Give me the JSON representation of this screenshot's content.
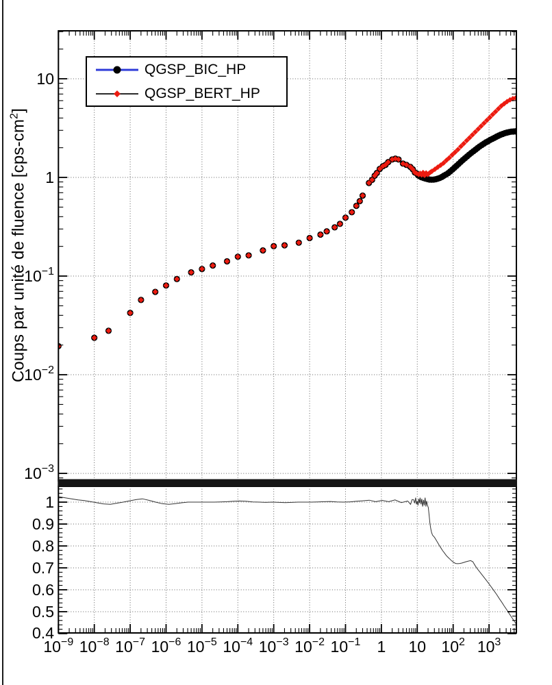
{
  "page": {
    "background": "#ffffff"
  },
  "colors": {
    "frame": "#000000",
    "grid": "#5f5f5f",
    "separator_band": "#161616",
    "bic_marker": "#000000",
    "bert_marker": "#ec1b10",
    "bic_legend_line": "#2e3bd8",
    "bert_legend_line": "#2a2a2a",
    "ratio_line": "#333333",
    "text": "#000000"
  },
  "legend": {
    "entries": [
      {
        "label": "QGSP_BIC_HP",
        "line_color": "#2e3bd8",
        "marker_shape": "circle",
        "marker_color": "#000000"
      },
      {
        "label": "QGSP_BERT_HP",
        "line_color": "#2a2a2a",
        "marker_shape": "diamond",
        "marker_color": "#ec1b10"
      }
    ]
  },
  "axes": {
    "y_title_prefix": "Coups par unité  de fluence [cps-cm",
    "y_title_sup": "2",
    "y_title_suffix": "]"
  },
  "chart_data": {
    "type": "scatter",
    "title": "",
    "xlabel": "",
    "x_scale": "log",
    "x_range": [
      1e-09,
      5780
    ],
    "x_tick_decades": [
      -9,
      -8,
      -7,
      -6,
      -5,
      -4,
      -3,
      -2,
      -1,
      0,
      1,
      2,
      3
    ],
    "grid": "dotted",
    "legend_position": "top-left",
    "main_panel": {
      "ylabel": "Coups par unité de fluence [cps-cm2]",
      "y_scale": "log",
      "y_range": [
        0.00084,
        30.6
      ],
      "y_tick_decades": [
        1,
        0,
        -1,
        -2,
        -3
      ],
      "series_names": [
        "QGSP_BIC_HP",
        "QGSP_BERT_HP"
      ],
      "shared_points": [
        [
          1e-09,
          0.0195
        ],
        [
          1e-08,
          0.0237
        ],
        [
          2.5e-08,
          0.0279
        ],
        [
          1e-07,
          0.0423
        ],
        [
          2e-07,
          0.0573
        ],
        [
          5e-07,
          0.0692
        ],
        [
          1e-06,
          0.0803
        ],
        [
          2e-06,
          0.0932
        ],
        [
          5e-06,
          0.109
        ],
        [
          1e-05,
          0.118
        ],
        [
          2e-05,
          0.128
        ],
        [
          5e-05,
          0.141
        ],
        [
          0.0001,
          0.157
        ],
        [
          0.0002,
          0.162
        ],
        [
          0.0005,
          0.182
        ],
        [
          0.001,
          0.201
        ],
        [
          0.002,
          0.205
        ],
        [
          0.005,
          0.218
        ],
        [
          0.01,
          0.243
        ],
        [
          0.02,
          0.263
        ],
        [
          0.03,
          0.284
        ],
        [
          0.05,
          0.312
        ],
        [
          0.07,
          0.338
        ],
        [
          0.1,
          0.391
        ],
        [
          0.15,
          0.444
        ],
        [
          0.2,
          0.515
        ],
        [
          0.25,
          0.575
        ],
        [
          0.3,
          0.654
        ],
        [
          0.45,
          0.879
        ],
        [
          0.55,
          0.945
        ],
        [
          0.65,
          1.04
        ],
        [
          0.75,
          1.11
        ],
        [
          0.9,
          1.22
        ],
        [
          1.1,
          1.3
        ],
        [
          1.3,
          1.34
        ],
        [
          1.55,
          1.43
        ],
        [
          2.0,
          1.52
        ],
        [
          2.45,
          1.55
        ],
        [
          3.0,
          1.52
        ],
        [
          4.0,
          1.38
        ],
        [
          5.0,
          1.34
        ],
        [
          6.4,
          1.28
        ],
        [
          7.5,
          1.21
        ],
        [
          8.6,
          1.12
        ],
        [
          9.5,
          1.1
        ]
      ],
      "bic_points": [
        [
          10.5,
          1.05
        ],
        [
          11.7,
          1.025
        ],
        [
          13,
          1.005
        ],
        [
          15,
          0.985
        ],
        [
          17,
          0.972
        ],
        [
          19.5,
          0.96
        ],
        [
          22,
          0.952
        ],
        [
          25,
          0.948
        ],
        [
          28.5,
          0.95
        ],
        [
          32.5,
          0.958
        ],
        [
          37,
          0.97
        ],
        [
          42.5,
          0.987
        ],
        [
          48.5,
          1.01
        ],
        [
          55,
          1.04
        ],
        [
          63,
          1.07
        ],
        [
          72.5,
          1.105
        ],
        [
          83,
          1.15
        ],
        [
          95,
          1.2
        ],
        [
          108,
          1.25
        ],
        [
          124,
          1.31
        ],
        [
          142,
          1.37
        ],
        [
          163,
          1.435
        ],
        [
          186,
          1.5
        ],
        [
          213,
          1.565
        ],
        [
          244,
          1.63
        ],
        [
          279,
          1.7
        ],
        [
          320,
          1.77
        ],
        [
          366,
          1.84
        ],
        [
          419,
          1.91
        ],
        [
          479,
          1.985
        ],
        [
          549,
          2.06
        ],
        [
          628,
          2.13
        ],
        [
          719,
          2.2
        ],
        [
          823,
          2.27
        ],
        [
          942,
          2.33
        ],
        [
          1078,
          2.4
        ],
        [
          1234,
          2.46
        ],
        [
          1412,
          2.52
        ],
        [
          1616,
          2.59
        ],
        [
          1850,
          2.65
        ],
        [
          2117,
          2.71
        ],
        [
          2423,
          2.76
        ],
        [
          2773,
          2.81
        ],
        [
          3174,
          2.85
        ],
        [
          3632,
          2.88
        ],
        [
          4157,
          2.91
        ],
        [
          4758,
          2.92
        ],
        [
          5446,
          2.93
        ],
        [
          5780,
          2.92
        ]
      ],
      "bert_points": [
        [
          11,
          1.07
        ],
        [
          12,
          1.1
        ],
        [
          13.2,
          1.06
        ],
        [
          14.5,
          1.12
        ],
        [
          16,
          1.05
        ],
        [
          17.6,
          1.11
        ],
        [
          19.4,
          1.07
        ],
        [
          21.3,
          1.1
        ],
        [
          23.4,
          1.13
        ],
        [
          25.7,
          1.155
        ],
        [
          30.9,
          1.21
        ],
        [
          37.2,
          1.27
        ],
        [
          44.8,
          1.33
        ],
        [
          54,
          1.4
        ],
        [
          65,
          1.49
        ],
        [
          78,
          1.58
        ],
        [
          94,
          1.69
        ],
        [
          113,
          1.8
        ],
        [
          136,
          1.92
        ],
        [
          164,
          2.06
        ],
        [
          197,
          2.2
        ],
        [
          238,
          2.36
        ],
        [
          286,
          2.52
        ],
        [
          344,
          2.7
        ],
        [
          414,
          2.89
        ],
        [
          499,
          3.09
        ],
        [
          600,
          3.31
        ],
        [
          723,
          3.54
        ],
        [
          870,
          3.79
        ],
        [
          1047,
          4.05
        ],
        [
          1260,
          4.34
        ],
        [
          1517,
          4.64
        ],
        [
          1826,
          4.97
        ],
        [
          2198,
          5.3
        ],
        [
          2646,
          5.59
        ],
        [
          3184,
          5.87
        ],
        [
          3833,
          6.11
        ],
        [
          4613,
          6.28
        ],
        [
          5553,
          6.4
        ],
        [
          5780,
          6.43
        ]
      ]
    },
    "ratio_panel": {
      "ylabel": "",
      "y_scale": "linear",
      "y_range": [
        0.403,
        1.072
      ],
      "y_ticks": [
        1.0,
        0.9,
        0.8,
        0.7,
        0.6,
        0.5,
        0.4
      ],
      "y_minor_step": 0.02,
      "ratio_points": [
        [
          1e-09,
          1.025
        ],
        [
          1.5e-09,
          1.02
        ],
        [
          2.3e-09,
          1.015
        ],
        [
          3.5e-09,
          1.01
        ],
        [
          5.3e-09,
          1.007
        ],
        [
          8e-09,
          1.002
        ],
        [
          1.2e-08,
          0.997
        ],
        [
          1.8e-08,
          0.992
        ],
        [
          2.8e-08,
          0.99
        ],
        [
          4.2e-08,
          0.995
        ],
        [
          6.4e-08,
          1.0
        ],
        [
          9.7e-08,
          1.006
        ],
        [
          1.5e-07,
          1.012
        ],
        [
          2.2e-07,
          1.015
        ],
        [
          3.4e-07,
          1.008
        ],
        [
          5.1e-07,
          1.0
        ],
        [
          7.8e-07,
          0.993
        ],
        [
          1.2e-06,
          0.99
        ],
        [
          1.8e-06,
          0.993
        ],
        [
          2.7e-06,
          0.997
        ],
        [
          4.1e-06,
          1.0
        ],
        [
          6.2e-06,
          1.0
        ],
        [
          9.4e-06,
          1.0
        ],
        [
          1.4e-05,
          1.0
        ],
        [
          2.2e-05,
          1.0
        ],
        [
          3.3e-05,
          1.001
        ],
        [
          5e-05,
          1.002
        ],
        [
          7.5e-05,
          1.004
        ],
        [
          0.00011,
          1.005
        ],
        [
          0.00017,
          1.004
        ],
        [
          0.00026,
          1.001
        ],
        [
          0.0004,
          1.0
        ],
        [
          0.0006,
          0.999
        ],
        [
          0.00091,
          1.0
        ],
        [
          0.0014,
          0.999
        ],
        [
          0.0021,
          0.998
        ],
        [
          0.0032,
          0.999
        ],
        [
          0.0048,
          1.0
        ],
        [
          0.0073,
          1.0
        ],
        [
          0.011,
          1.0
        ],
        [
          0.017,
          1.001
        ],
        [
          0.025,
          1.002
        ],
        [
          0.038,
          1.003
        ],
        [
          0.058,
          1.001
        ],
        [
          0.087,
          1.0
        ],
        [
          0.13,
          1.001
        ],
        [
          0.2,
          1.004
        ],
        [
          0.3,
          1.006
        ],
        [
          0.46,
          1.009
        ],
        [
          0.69,
          1.002
        ],
        [
          1.05,
          1.008
        ],
        [
          1.6,
          1.002
        ],
        [
          2.4,
          1.01
        ],
        [
          3.6,
          0.998
        ],
        [
          5.4,
          1.005
        ],
        [
          6.5,
          0.99
        ],
        [
          7.2,
          1.012
        ],
        [
          8,
          1.01
        ],
        [
          8.5,
          0.995
        ],
        [
          9,
          1.02
        ],
        [
          9.5,
          0.99
        ],
        [
          10,
          1.005
        ],
        [
          10.5,
          0.985
        ],
        [
          11,
          1.015
        ],
        [
          11.5,
          0.995
        ],
        [
          12,
          1.02
        ],
        [
          12.7,
          0.99
        ],
        [
          13.4,
          1.015
        ],
        [
          14.1,
          0.98
        ],
        [
          14.9,
          1.01
        ],
        [
          15.7,
          0.985
        ],
        [
          16.5,
          1.02
        ],
        [
          17.4,
          0.98
        ],
        [
          18.3,
          1.005
        ],
        [
          19.3,
          0.985
        ],
        [
          20.3,
          0.975
        ],
        [
          21.4,
          0.94
        ],
        [
          22.5,
          0.905
        ],
        [
          23.7,
          0.88
        ],
        [
          25,
          0.862
        ],
        [
          26.5,
          0.85
        ],
        [
          28,
          0.845
        ],
        [
          30,
          0.84
        ],
        [
          32,
          0.833
        ],
        [
          35,
          0.822
        ],
        [
          38,
          0.812
        ],
        [
          42,
          0.8
        ],
        [
          46,
          0.79
        ],
        [
          51,
          0.778
        ],
        [
          57,
          0.768
        ],
        [
          64,
          0.757
        ],
        [
          72,
          0.748
        ],
        [
          81,
          0.74
        ],
        [
          91,
          0.732
        ],
        [
          103,
          0.725
        ],
        [
          117,
          0.72
        ],
        [
          133,
          0.719
        ],
        [
          152,
          0.72
        ],
        [
          174,
          0.722
        ],
        [
          200,
          0.725
        ],
        [
          230,
          0.728
        ],
        [
          265,
          0.731
        ],
        [
          306,
          0.733
        ],
        [
          354,
          0.728
        ],
        [
          410,
          0.71
        ],
        [
          475,
          0.695
        ],
        [
          550,
          0.682
        ],
        [
          640,
          0.668
        ],
        [
          745,
          0.654
        ],
        [
          870,
          0.64
        ],
        [
          1020,
          0.625
        ],
        [
          1190,
          0.61
        ],
        [
          1400,
          0.594
        ],
        [
          1640,
          0.578
        ],
        [
          1930,
          0.56
        ],
        [
          2270,
          0.543
        ],
        [
          2670,
          0.525
        ],
        [
          3140,
          0.508
        ],
        [
          3700,
          0.49
        ],
        [
          4360,
          0.472
        ],
        [
          5140,
          0.455
        ],
        [
          5780,
          0.442
        ]
      ]
    }
  }
}
